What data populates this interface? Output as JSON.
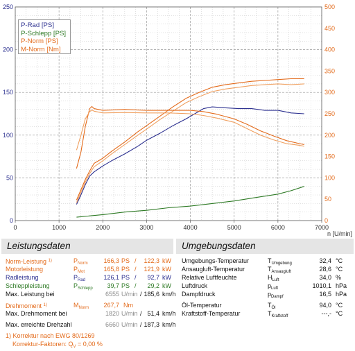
{
  "chart_data": {
    "type": "line",
    "xlabel": "n [U/min]",
    "xlim": [
      0,
      7000
    ],
    "x_ticks": [
      "0",
      "1000",
      "2000",
      "3000",
      "4000",
      "5000",
      "6000",
      "7000"
    ],
    "y_left_lim": [
      0,
      250
    ],
    "y_left_ticks": [
      "0",
      "50",
      "100",
      "150",
      "200",
      "250"
    ],
    "y_right_lim": [
      0,
      500
    ],
    "y_right_ticks": [
      "0",
      "50",
      "100",
      "150",
      "200",
      "250",
      "300",
      "350",
      "400",
      "450",
      "500"
    ],
    "grid": true,
    "legend_position": "top-left",
    "series": [
      {
        "name": "P-Rad [PS]",
        "color": "#2b2f8f",
        "axis": "left",
        "x": [
          1400,
          1500,
          1600,
          1700,
          1800,
          2000,
          2200,
          2500,
          2800,
          3000,
          3300,
          3600,
          3900,
          4100,
          4300,
          4500,
          4800,
          5100,
          5400,
          5700,
          6000,
          6300,
          6600
        ],
        "y": [
          19,
          30,
          42,
          52,
          57,
          64,
          70,
          78,
          87,
          94,
          102,
          111,
          119,
          125,
          131,
          133,
          132,
          131,
          131,
          129,
          129,
          126,
          125
        ]
      },
      {
        "name": "P-Schlepp [PS]",
        "color": "#2e7a25",
        "axis": "left",
        "x": [
          1400,
          2000,
          2500,
          3000,
          3500,
          4000,
          4500,
          5000,
          5500,
          6000,
          6300,
          6600
        ],
        "y": [
          4,
          7,
          10,
          12,
          15,
          17,
          20,
          23,
          27,
          31,
          35,
          40
        ]
      },
      {
        "name": "P-Norm [PS]",
        "color": "#e36a1a",
        "axis": "left",
        "x": [
          1400,
          1500,
          1600,
          1700,
          1800,
          2000,
          2200,
          2500,
          2800,
          3000,
          3300,
          3600,
          3900,
          4200,
          4500,
          4800,
          5100,
          5400,
          5700,
          6000,
          6300,
          6600
        ],
        "y": [
          24,
          36,
          48,
          58,
          67,
          73,
          81,
          92,
          104,
          111,
          122,
          133,
          143,
          150,
          156,
          159,
          161,
          163,
          164,
          165,
          166,
          166
        ]
      },
      {
        "name": "P-Norm [PS]",
        "color": "#f0a060",
        "axis": "left",
        "x": [
          1400,
          1500,
          1600,
          1700,
          1800,
          2000,
          2200,
          2500,
          2800,
          3000,
          3300,
          3600,
          3900,
          4200,
          4500,
          4800,
          5100,
          5400,
          5700,
          6000,
          6300,
          6600
        ],
        "y": [
          21,
          33,
          45,
          55,
          63,
          70,
          78,
          89,
          100,
          107,
          118,
          128,
          138,
          145,
          151,
          154,
          156,
          158,
          159,
          160,
          159,
          160
        ]
      },
      {
        "name": "M-Norm [Nm]",
        "color": "#e36a1a",
        "axis": "right",
        "x": [
          1400,
          1500,
          1600,
          1700,
          1750,
          1800,
          2000,
          2500,
          3000,
          3500,
          4000,
          4300,
          4600,
          5000,
          5300,
          5600,
          5900,
          6200,
          6500,
          6600
        ],
        "y": [
          122,
          160,
          220,
          262,
          267,
          262,
          258,
          260,
          258,
          258,
          258,
          255,
          249,
          238,
          225,
          210,
          198,
          187,
          180,
          178
        ]
      },
      {
        "name": "M-Norm [Nm]",
        "color": "#f0a060",
        "axis": "right",
        "x": [
          1400,
          1500,
          1600,
          1700,
          1750,
          1800,
          2000,
          2500,
          3000,
          3500,
          4000,
          4300,
          4600,
          5000,
          5300,
          5600,
          5900,
          6200,
          6500,
          6600
        ],
        "y": [
          165,
          200,
          238,
          255,
          259,
          256,
          252,
          253,
          252,
          252,
          250,
          246,
          240,
          230,
          215,
          200,
          189,
          180,
          176,
          174
        ]
      }
    ]
  },
  "legend": {
    "items": [
      {
        "label": "P-Rad [PS]",
        "color": "#2b2f8f"
      },
      {
        "label": "P-Schlepp [PS]",
        "color": "#2e7a25"
      },
      {
        "label": "P-Norm [PS]",
        "color": "#e36a1a"
      },
      {
        "label": "M-Norm [Nm]",
        "color": "#e36a1a"
      }
    ]
  },
  "leistung": {
    "title": "Leistungsdaten",
    "norm": {
      "label": "Norm-Leistung",
      "footnote": "1)",
      "sym": "P",
      "sub": "Norm",
      "ps": "166,3",
      "ps_unit": "PS",
      "sep": "/",
      "kw": "122,3",
      "kw_unit": "kW"
    },
    "motor": {
      "label": "Motorleistung",
      "sym": "P",
      "sub": "Mot",
      "ps": "165,8",
      "ps_unit": "PS",
      "sep": "/",
      "kw": "121,9",
      "kw_unit": "kW"
    },
    "rad": {
      "label": "Radleistung",
      "sym": "P",
      "sub": "Rad",
      "ps": "126,1",
      "ps_unit": "PS",
      "sep": "/",
      "kw": "92,7",
      "kw_unit": "kW"
    },
    "schlepp": {
      "label": "Schleppleistung",
      "sym": "P",
      "sub": "Schlepp",
      "ps": "39,7",
      "ps_unit": "PS",
      "sep": "/",
      "kw": "29,2",
      "kw_unit": "kW"
    },
    "max_leistung": {
      "label": "Max. Leistung bei",
      "rpm": "6555",
      "rpm_unit": "U/min",
      "sep": "/",
      "kmh": "185,6",
      "kmh_unit": "km/h"
    },
    "drehmoment": {
      "label": "Drehmoment",
      "footnote": "1)",
      "sym": "M",
      "sub": "Norm",
      "value": "267,7",
      "unit": "Nm"
    },
    "max_drehmoment": {
      "label": "Max. Drehmoment bei",
      "rpm": "1820",
      "rpm_unit": "U/min",
      "sep": "/",
      "kmh": "51,4",
      "kmh_unit": "km/h"
    },
    "max_drehzahl": {
      "label": "Max. erreichte Drehzahl",
      "rpm": "6660",
      "rpm_unit": "U/min",
      "sep": "/",
      "kmh": "187,3",
      "kmh_unit": "km/h"
    },
    "korrektur": "1) Korrektur nach EWG 80/1269",
    "faktoren_label": "Korrektur-Faktoren: Q",
    "faktoren_sub": "V",
    "faktoren_value": " = 0,00 %"
  },
  "umgebung": {
    "title": "Umgebungsdaten",
    "rows": [
      {
        "label": "Umgebungs-Temperatur",
        "sym": "T",
        "sub": "Umgebung",
        "value": "32,4",
        "unit": "°C"
      },
      {
        "label": "Ansaugluft-Temperatur",
        "sym": "T",
        "sub": "Ansaugluft",
        "value": "28,6",
        "unit": "°C"
      },
      {
        "label": "Relative Luftfeuchte",
        "sym": "H",
        "sub": "Luft",
        "value": "34,0",
        "unit": "%"
      },
      {
        "label": "Luftdruck",
        "sym": "p",
        "sub": "Luft",
        "value": "1010,1",
        "unit": "hPa"
      },
      {
        "label": "Dampfdruck",
        "sym": "p",
        "sub": "Dampf",
        "value": "16,5",
        "unit": "hPa"
      },
      {
        "label": "Öl-Temperatur",
        "sym": "T",
        "sub": "Öl",
        "value": "94,0",
        "unit": "°C"
      },
      {
        "label": "Kraftstoff-Temperatur",
        "sym": "T",
        "sub": "Kraftstoff",
        "value": "---,-",
        "unit": "°C"
      }
    ]
  }
}
